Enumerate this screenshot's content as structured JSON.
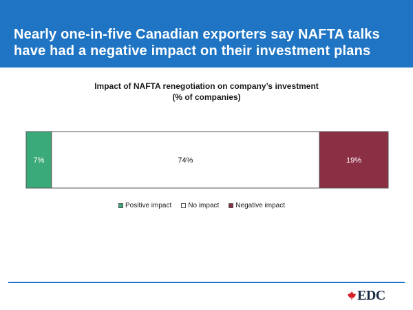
{
  "header": {
    "title": "Nearly one-in-five Canadian exporters say NAFTA talks have had a negative impact on their investment plans"
  },
  "logo": {
    "text": "EDC",
    "leaf_color": "#d42027"
  },
  "colors": {
    "banner": "#1f75c4",
    "footer_line": "#1f75c4"
  },
  "chart_data": {
    "type": "bar",
    "orientation": "horizontal-stacked-100",
    "title": "Impact of NAFTA renegotiation on company’s investment",
    "subtitle": "(% of companies)",
    "categories": [
      ""
    ],
    "series": [
      {
        "name": "Positive impact",
        "values": [
          7
        ],
        "label": "7%",
        "color": "#3aaa7a"
      },
      {
        "name": "No impact",
        "values": [
          74
        ],
        "label": "74%",
        "color": "#ffffff"
      },
      {
        "name": "Negative impact",
        "values": [
          19
        ],
        "label": "19%",
        "color": "#8b2f45"
      }
    ],
    "xlim": [
      0,
      100
    ],
    "grid": false,
    "legend_position": "bottom"
  }
}
